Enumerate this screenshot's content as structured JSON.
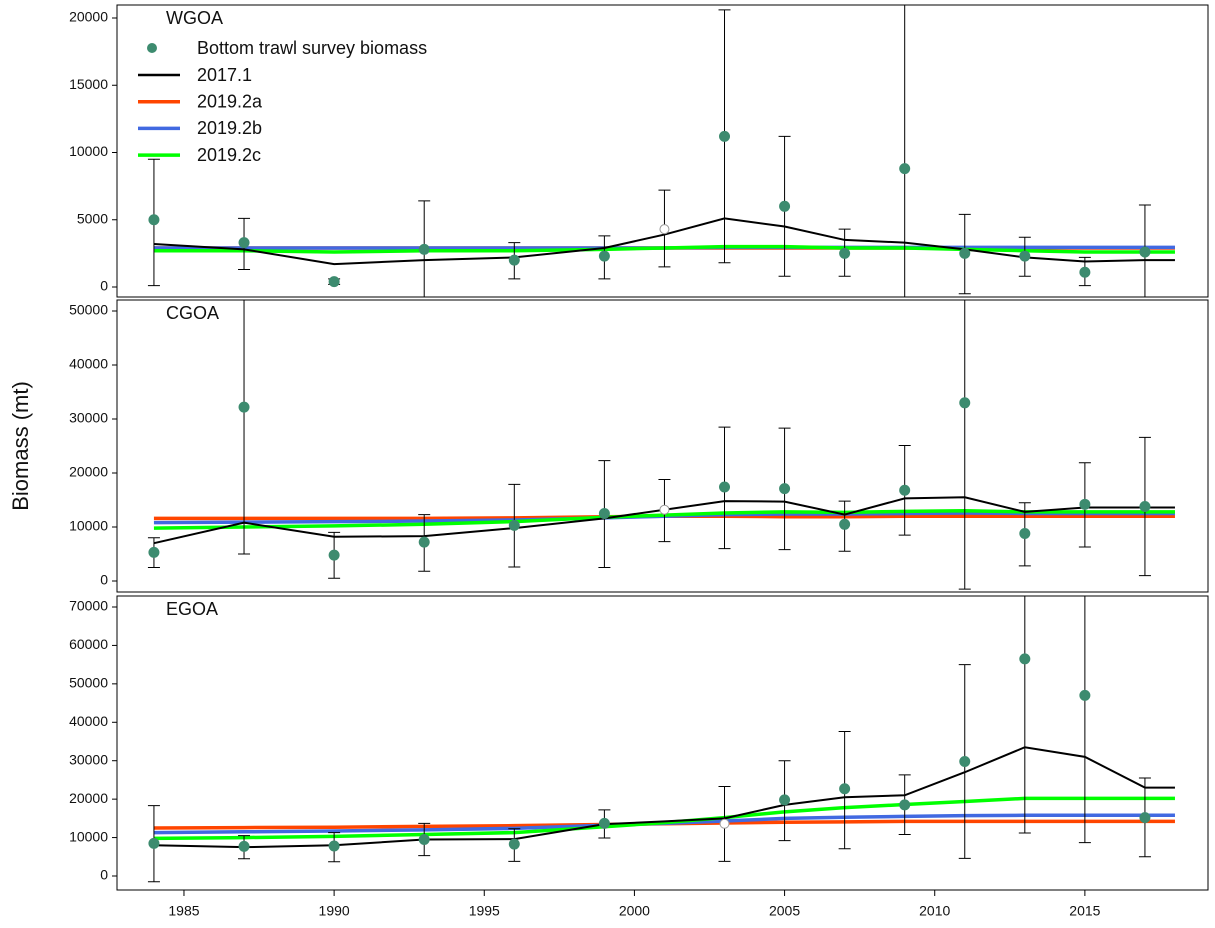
{
  "chart_data": [
    {
      "type": "line",
      "label": "WGOA",
      "xlim": [
        1982.77,
        2019.1
      ],
      "ylim": [
        -743,
        20967
      ],
      "yticks": [
        0,
        5000,
        10000,
        15000,
        20000
      ],
      "x": [
        1984,
        1987,
        1990,
        1993,
        1996,
        1999,
        2001,
        2003,
        2005,
        2007,
        2009,
        2011,
        2013,
        2015,
        2017,
        2018
      ],
      "survey": {
        "name": "Bottom trawl survey biomass",
        "color": "#3d8b6f",
        "x": [
          1984,
          1987,
          1990,
          1993,
          1996,
          1999,
          2001,
          2003,
          2005,
          2007,
          2009,
          2011,
          2013,
          2015,
          2017
        ],
        "values": [
          5000,
          3300,
          400,
          2800,
          2000,
          2300,
          4300,
          11200,
          6000,
          2500,
          8800,
          2500,
          2300,
          1100,
          2600
        ],
        "lower": [
          100,
          1300,
          200,
          -900,
          600,
          600,
          1500,
          1800,
          800,
          800,
          -900,
          -500,
          800,
          100,
          -900
        ],
        "upper": [
          9500,
          5100,
          600,
          6400,
          3300,
          3800,
          7200,
          20600,
          11200,
          4300,
          30000,
          5400,
          3700,
          2200,
          6100
        ],
        "filled": [
          true,
          true,
          true,
          true,
          true,
          true,
          false,
          true,
          true,
          true,
          true,
          true,
          true,
          true,
          true
        ]
      },
      "series": [
        {
          "name": "2017.1",
          "color": "#000000",
          "values": [
            3200,
            2800,
            1700,
            2000,
            2200,
            2900,
            3900,
            5100,
            4500,
            3500,
            3300,
            2800,
            2200,
            1900,
            2000,
            2000
          ]
        },
        {
          "name": "2019.2a",
          "color": "#ff4500",
          "values": [
            2900,
            2900,
            2900,
            2900,
            2900,
            2900,
            2900,
            2900,
            2900,
            2900,
            2900,
            2900,
            2900,
            2900,
            2900,
            2900
          ]
        },
        {
          "name": "2019.2b",
          "color": "#4169e1",
          "values": [
            2900,
            2900,
            2900,
            2900,
            2900,
            2900,
            2900,
            2950,
            2950,
            2950,
            2950,
            2950,
            2950,
            2950,
            2950,
            2950
          ]
        },
        {
          "name": "2019.2c",
          "color": "#00ff00",
          "values": [
            2700,
            2700,
            2600,
            2700,
            2700,
            2800,
            2900,
            3000,
            3000,
            2900,
            2900,
            2800,
            2700,
            2600,
            2600,
            2600
          ]
        }
      ]
    },
    {
      "type": "line",
      "label": "CGOA",
      "y_label": "Biomass (mt)",
      "xlim": [
        1982.77,
        2019.1
      ],
      "ylim": [
        -2037,
        52037
      ],
      "yticks": [
        0,
        10000,
        20000,
        30000,
        40000,
        50000
      ],
      "x": [
        1984,
        1987,
        1990,
        1993,
        1996,
        1999,
        2001,
        2003,
        2005,
        2007,
        2009,
        2011,
        2013,
        2015,
        2017,
        2018
      ],
      "survey": {
        "color": "#3d8b6f",
        "x": [
          1984,
          1987,
          1990,
          1993,
          1996,
          1999,
          2001,
          2003,
          2005,
          2007,
          2009,
          2011,
          2013,
          2015,
          2017
        ],
        "values": [
          5300,
          32200,
          4800,
          7200,
          10300,
          12500,
          13200,
          17400,
          17100,
          10500,
          16800,
          33000,
          8800,
          14200,
          13800
        ],
        "lower": [
          2500,
          5000,
          500,
          1800,
          2600,
          2500,
          7300,
          6000,
          5800,
          5500,
          8500,
          -1500,
          2800,
          6300,
          1000
        ],
        "upper": [
          8000,
          60000,
          9000,
          12300,
          17900,
          22300,
          18800,
          28500,
          28300,
          14800,
          25100,
          60000,
          14500,
          21900,
          26600
        ],
        "filled": [
          true,
          true,
          true,
          true,
          true,
          true,
          false,
          true,
          true,
          true,
          true,
          true,
          true,
          true,
          true
        ]
      },
      "series": [
        {
          "color": "#000000",
          "values": [
            7000,
            10800,
            8200,
            8300,
            9800,
            11600,
            13200,
            14800,
            14700,
            12300,
            15300,
            15500,
            12800,
            13600,
            13600,
            13600
          ]
        },
        {
          "color": "#ff4500",
          "values": [
            11600,
            11600,
            11600,
            11600,
            11700,
            11900,
            12000,
            12000,
            11900,
            11900,
            12000,
            12000,
            12000,
            12000,
            12000,
            12000
          ]
        },
        {
          "color": "#4169e1",
          "values": [
            10800,
            10900,
            11000,
            11100,
            11300,
            11700,
            12000,
            12300,
            12400,
            12400,
            12500,
            12600,
            12500,
            12500,
            12500,
            12500
          ]
        },
        {
          "color": "#00ff00",
          "values": [
            9800,
            10000,
            10200,
            10500,
            11000,
            11800,
            12200,
            12600,
            12800,
            12700,
            12900,
            13000,
            12800,
            12800,
            12800,
            12800
          ]
        }
      ]
    },
    {
      "type": "line",
      "label": "EGOA",
      "xlim": [
        1982.77,
        2019.1
      ],
      "ylim": [
        -3643,
        72860
      ],
      "yticks": [
        0,
        10000,
        20000,
        30000,
        40000,
        50000,
        60000,
        70000
      ],
      "xticks": [
        1985,
        1990,
        1995,
        2000,
        2005,
        2010,
        2015
      ],
      "x": [
        1984,
        1987,
        1990,
        1993,
        1996,
        1999,
        2001,
        2003,
        2005,
        2007,
        2009,
        2011,
        2013,
        2015,
        2017,
        2018
      ],
      "survey": {
        "color": "#3d8b6f",
        "x": [
          1984,
          1987,
          1990,
          1993,
          1996,
          1999,
          2003,
          2005,
          2007,
          2009,
          2011,
          2013,
          2015,
          2017
        ],
        "values": [
          8500,
          7700,
          7800,
          9500,
          8300,
          13700,
          13600,
          19800,
          22700,
          18500,
          29800,
          56500,
          47000,
          15200
        ],
        "lower": [
          -1500,
          4500,
          3700,
          5300,
          3800,
          9900,
          3800,
          9200,
          7100,
          10800,
          4600,
          11200,
          8700,
          5000
        ],
        "upper": [
          18300,
          10500,
          11300,
          13700,
          12300,
          17200,
          23300,
          30000,
          37600,
          26300,
          55000,
          100000,
          90000,
          25500
        ],
        "filled": [
          true,
          true,
          true,
          true,
          true,
          true,
          false,
          true,
          true,
          true,
          true,
          true,
          true,
          true
        ]
      },
      "series": [
        {
          "color": "#000000",
          "values": [
            8000,
            7500,
            8000,
            9500,
            9600,
            13500,
            14200,
            15000,
            18500,
            20500,
            21000,
            27000,
            33500,
            31000,
            23000,
            23000
          ]
        },
        {
          "color": "#ff4500",
          "values": [
            12500,
            12600,
            12700,
            12900,
            13100,
            13400,
            13600,
            13800,
            14000,
            14100,
            14200,
            14200,
            14200,
            14200,
            14200,
            14200
          ]
        },
        {
          "color": "#4169e1",
          "values": [
            11300,
            11500,
            11700,
            12000,
            12400,
            13200,
            13700,
            14300,
            15000,
            15300,
            15500,
            15700,
            15800,
            15800,
            15800,
            15800
          ]
        },
        {
          "color": "#00ff00",
          "values": [
            9800,
            10000,
            10300,
            10800,
            11300,
            12800,
            13900,
            15200,
            16700,
            17800,
            18600,
            19400,
            20200,
            20200,
            20200,
            20200
          ]
        }
      ]
    }
  ]
}
